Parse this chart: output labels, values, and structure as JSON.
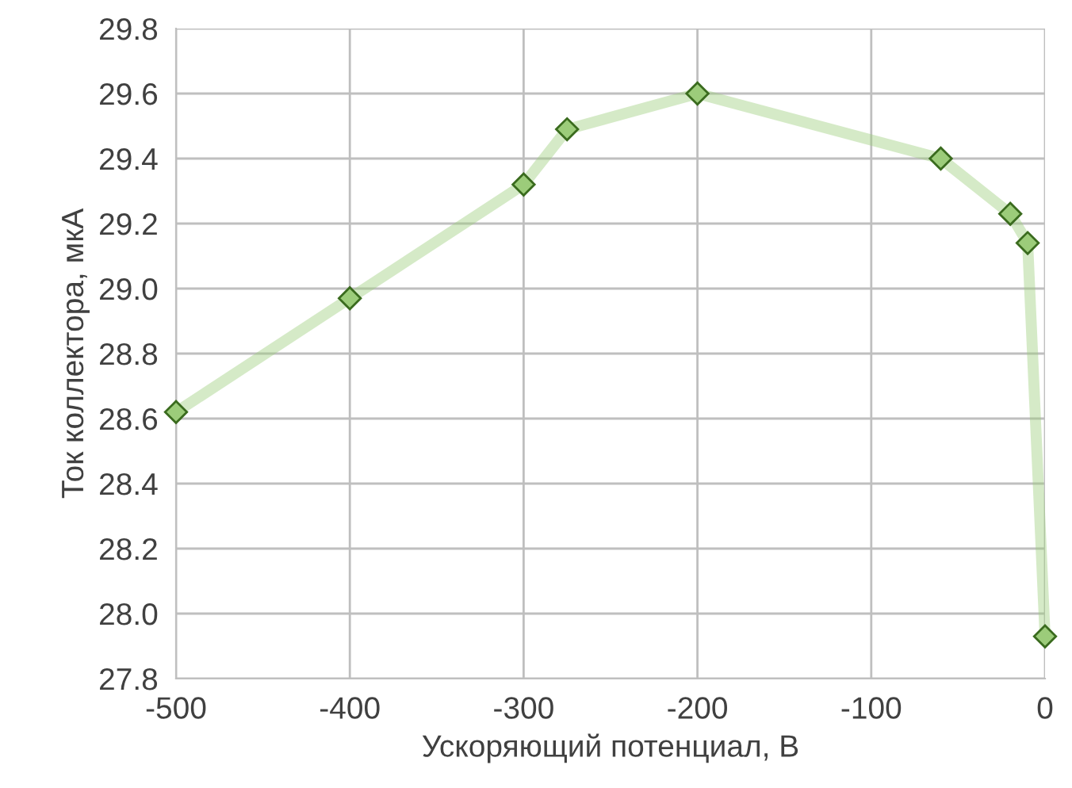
{
  "chart_data": {
    "type": "line",
    "xlabel": "Ускоряющий потенциал, В",
    "ylabel": "Ток коллектора, мкА",
    "series": [
      {
        "color": "#9ccc7a",
        "x": [
          -500,
          -400,
          -300,
          -275,
          -200,
          -60,
          -20,
          -10,
          0
        ],
        "values": [
          28.62,
          28.97,
          29.32,
          29.49,
          29.6,
          29.4,
          29.23,
          29.14,
          27.93
        ]
      }
    ],
    "xlim": [
      -500,
      0
    ],
    "xticks": [
      -500,
      -400,
      -300,
      -200,
      -100,
      0
    ],
    "ylim": [
      27.8,
      29.8
    ],
    "yticks": [
      {
        "value": 27.8,
        "label": "27.8"
      },
      {
        "value": 28.0,
        "label": "28.0"
      },
      {
        "value": 28.2,
        "label": "28.2"
      },
      {
        "value": 28.4,
        "label": "28.4"
      },
      {
        "value": 28.6,
        "label": "28.6"
      },
      {
        "value": 28.8,
        "label": "28.8"
      },
      {
        "value": 29.0,
        "label": "29.0"
      },
      {
        "value": 29.2,
        "label": "29.2"
      },
      {
        "value": 29.4,
        "label": "29.4"
      },
      {
        "value": 29.6,
        "label": "29.6"
      },
      {
        "value": 29.8,
        "label": "29.8"
      }
    ],
    "grid": true,
    "marker": "diamond",
    "line_style": "solid",
    "legend": false
  }
}
